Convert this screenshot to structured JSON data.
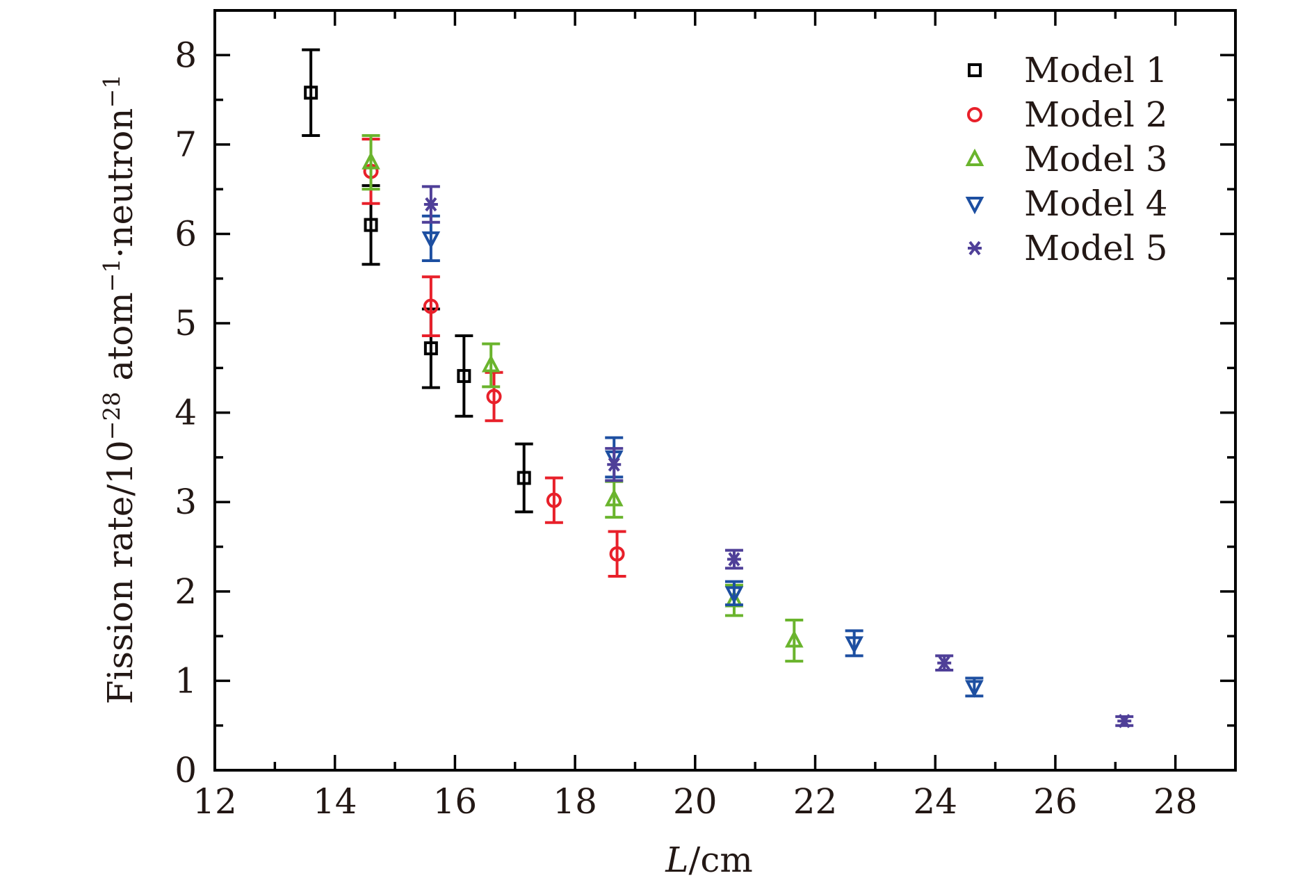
{
  "chart_data": {
    "type": "scatter",
    "title": "",
    "xlabel_italic": "L",
    "xlabel_rest": "/cm",
    "ylabel": {
      "base": "Fission rate/10",
      "exp1": "−28",
      "mid1": " atom",
      "exp2": "−1",
      "mid2": "·neutron",
      "exp3": "−1"
    },
    "xlim": [
      12,
      29
    ],
    "ylim": [
      0,
      8.5
    ],
    "x_ticks": [
      12,
      14,
      16,
      18,
      20,
      22,
      24,
      26,
      28
    ],
    "x_minor_ticks": [
      13,
      15,
      17,
      19,
      21,
      23,
      25,
      27
    ],
    "y_ticks": [
      0,
      1,
      2,
      3,
      4,
      5,
      6,
      7,
      8
    ],
    "y_minor_ticks": [
      0.5,
      1.5,
      2.5,
      3.5,
      4.5,
      5.5,
      6.5,
      7.5
    ],
    "legend_position": "top-right",
    "error_bars": true,
    "series": [
      {
        "name": "Model 1",
        "marker": "square",
        "color": "#000000",
        "points": [
          {
            "x": 13.6,
            "y": 7.58,
            "err": 0.48
          },
          {
            "x": 14.6,
            "y": 6.1,
            "err": 0.44
          },
          {
            "x": 15.6,
            "y": 4.72,
            "err": 0.44
          },
          {
            "x": 16.15,
            "y": 4.41,
            "err": 0.45
          },
          {
            "x": 17.15,
            "y": 3.27,
            "err": 0.38
          }
        ]
      },
      {
        "name": "Model 2",
        "marker": "circle",
        "color": "#e8202a",
        "points": [
          {
            "x": 14.6,
            "y": 6.7,
            "err": 0.36
          },
          {
            "x": 15.6,
            "y": 5.19,
            "err": 0.33
          },
          {
            "x": 16.65,
            "y": 4.18,
            "err": 0.27
          },
          {
            "x": 17.65,
            "y": 3.02,
            "err": 0.25
          },
          {
            "x": 18.7,
            "y": 2.42,
            "err": 0.25
          }
        ]
      },
      {
        "name": "Model 3",
        "marker": "triangle-up",
        "color": "#6ab42d",
        "points": [
          {
            "x": 14.6,
            "y": 6.8,
            "err": 0.3
          },
          {
            "x": 16.6,
            "y": 4.53,
            "err": 0.24
          },
          {
            "x": 18.65,
            "y": 3.03,
            "err": 0.2
          },
          {
            "x": 20.65,
            "y": 1.9,
            "err": 0.17
          },
          {
            "x": 21.65,
            "y": 1.45,
            "err": 0.23
          }
        ]
      },
      {
        "name": "Model 4",
        "marker": "triangle-down",
        "color": "#1d4fa1",
        "points": [
          {
            "x": 15.6,
            "y": 5.95,
            "err": 0.25
          },
          {
            "x": 18.65,
            "y": 3.5,
            "err": 0.22
          },
          {
            "x": 20.65,
            "y": 1.98,
            "err": 0.13
          },
          {
            "x": 22.65,
            "y": 1.42,
            "err": 0.14
          },
          {
            "x": 24.65,
            "y": 0.93,
            "err": 0.1
          }
        ]
      },
      {
        "name": "Model 5",
        "marker": "asterisk",
        "color": "#4f3f98",
        "points": [
          {
            "x": 15.6,
            "y": 6.33,
            "err": 0.2
          },
          {
            "x": 18.65,
            "y": 3.42,
            "err": 0.18
          },
          {
            "x": 20.65,
            "y": 2.36,
            "err": 0.1
          },
          {
            "x": 24.15,
            "y": 1.2,
            "err": 0.08
          },
          {
            "x": 27.15,
            "y": 0.55,
            "err": 0.05
          }
        ]
      }
    ]
  }
}
